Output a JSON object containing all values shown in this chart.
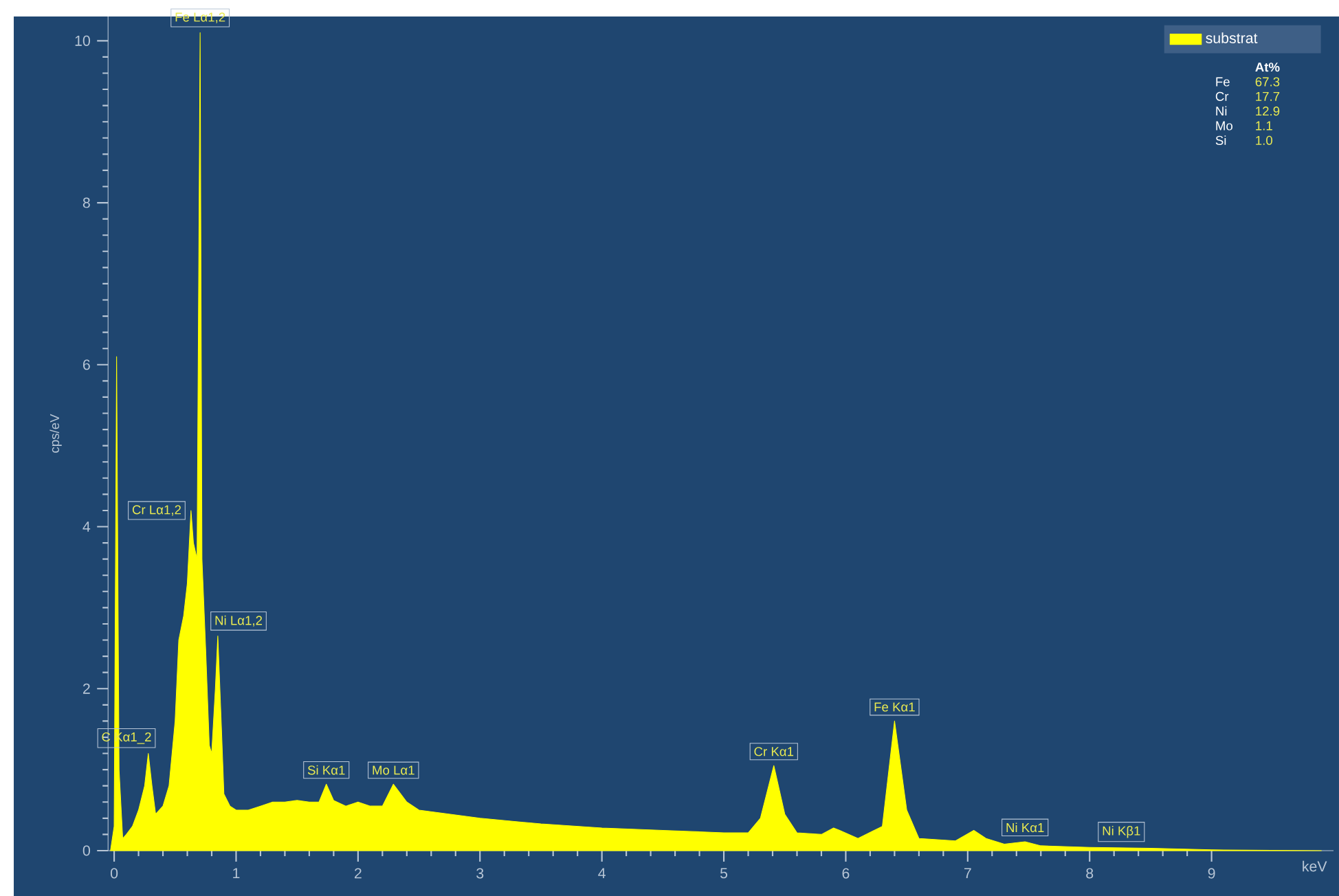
{
  "chart_data": {
    "type": "area",
    "xlabel": "keV",
    "ylabel": "cps/eV",
    "x": [
      -0.03,
      0.0,
      0.02,
      0.04,
      0.07,
      0.1,
      0.15,
      0.2,
      0.25,
      0.28,
      0.31,
      0.34,
      0.4,
      0.45,
      0.5,
      0.53,
      0.57,
      0.6,
      0.63,
      0.65,
      0.68,
      0.705,
      0.72,
      0.75,
      0.78,
      0.8,
      0.83,
      0.85,
      0.88,
      0.9,
      0.95,
      1.0,
      1.1,
      1.2,
      1.3,
      1.4,
      1.5,
      1.6,
      1.68,
      1.74,
      1.8,
      1.9,
      2.0,
      2.1,
      2.2,
      2.29,
      2.4,
      2.5,
      3.0,
      3.5,
      4.0,
      4.5,
      5.0,
      5.2,
      5.3,
      5.41,
      5.5,
      5.6,
      5.8,
      5.9,
      5.95,
      6.1,
      6.3,
      6.4,
      6.5,
      6.6,
      6.9,
      7.05,
      7.15,
      7.3,
      7.47,
      7.6,
      8.0,
      8.5,
      9.0,
      9.9
    ],
    "series": [
      {
        "name": "substrat",
        "color": "#ffff00",
        "values": [
          0,
          0.3,
          6.1,
          1.0,
          0.15,
          0.2,
          0.3,
          0.5,
          0.8,
          1.2,
          0.8,
          0.45,
          0.55,
          0.8,
          1.6,
          2.6,
          2.9,
          3.3,
          4.2,
          3.8,
          3.6,
          10.1,
          3.6,
          2.5,
          1.3,
          1.2,
          2.0,
          2.65,
          1.5,
          0.7,
          0.55,
          0.5,
          0.5,
          0.55,
          0.6,
          0.6,
          0.62,
          0.6,
          0.6,
          0.82,
          0.62,
          0.55,
          0.6,
          0.55,
          0.55,
          0.82,
          0.6,
          0.5,
          0.4,
          0.33,
          0.28,
          0.25,
          0.22,
          0.22,
          0.4,
          1.05,
          0.45,
          0.22,
          0.2,
          0.28,
          0.25,
          0.15,
          0.3,
          1.6,
          0.5,
          0.15,
          0.12,
          0.25,
          0.15,
          0.08,
          0.11,
          0.06,
          0.04,
          0.03,
          0.01,
          0.0
        ]
      }
    ],
    "xlim": [
      -0.05,
      10
    ],
    "ylim": [
      0,
      10.3
    ],
    "xticks": [
      0,
      1,
      2,
      3,
      4,
      5,
      6,
      7,
      8,
      9
    ],
    "yticks": [
      0,
      2,
      4,
      6,
      8,
      10
    ],
    "legend": "top right",
    "annotations": [
      {
        "text": "Fe Lα1,2",
        "x": 0.705,
        "y": 10.1
      },
      {
        "text": "Cr Lα1,2",
        "x": 0.63,
        "y": 4.2
      },
      {
        "text": "Ni Lα1,2",
        "x": 0.85,
        "y": 2.65
      },
      {
        "text": "C Kα1_2",
        "x": 0.28,
        "y": 1.2
      },
      {
        "text": "Si Kα1",
        "x": 1.74,
        "y": 0.82
      },
      {
        "text": "Mo Lα1",
        "x": 2.29,
        "y": 0.82
      },
      {
        "text": "Cr Kα1",
        "x": 5.41,
        "y": 1.05
      },
      {
        "text": "Fe Kα1",
        "x": 6.4,
        "y": 1.6
      },
      {
        "text": "Ni Kα1",
        "x": 7.47,
        "y": 0.11
      },
      {
        "text": "Ni Kβ1",
        "x": 8.26,
        "y": 0.04
      },
      "At%",
      "Fe",
      "67.3",
      "Cr",
      "17.7",
      "Ni",
      "12.9",
      "Mo",
      "1.1",
      "Si",
      "1.0"
    ]
  }
}
